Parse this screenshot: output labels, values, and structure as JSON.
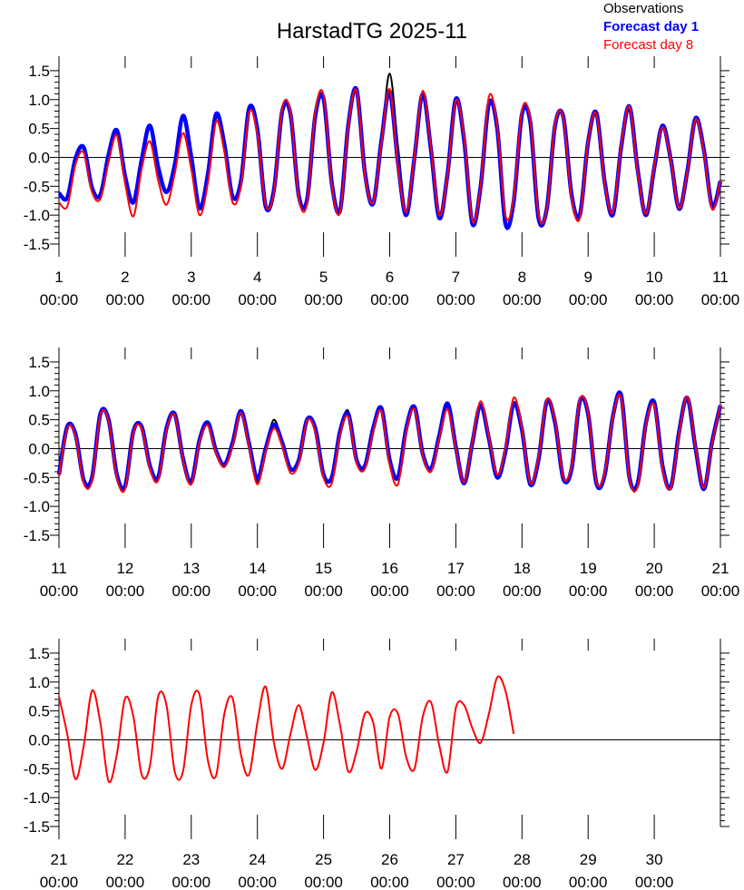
{
  "title": "HarstadTG 2025-11",
  "legend": "upper right",
  "chart_data": [
    {
      "type": "line",
      "x": [
        1,
        1.125,
        1.25,
        1.375,
        1.5,
        1.625,
        1.75,
        1.875,
        2,
        2.125,
        2.25,
        2.375,
        2.5,
        2.625,
        2.75,
        2.875,
        3,
        3.125,
        3.25,
        3.375,
        3.5,
        3.625,
        3.75,
        3.875,
        4,
        4.125,
        4.25,
        4.375,
        4.5,
        4.625,
        4.75,
        4.875,
        5,
        5.125,
        5.25,
        5.375,
        5.5,
        5.625,
        5.75,
        5.875,
        6,
        6.125,
        6.25,
        6.375,
        6.5,
        6.625,
        6.75,
        6.875,
        7,
        7.125,
        7.25,
        7.375,
        7.5,
        7.625,
        7.75,
        7.875,
        8,
        8.125,
        8.25,
        8.375,
        8.5,
        8.625,
        8.75,
        8.875,
        9,
        9.125,
        9.25,
        9.375,
        9.5,
        9.625,
        9.75,
        9.875,
        10,
        10.125,
        10.25,
        10.375,
        10.5,
        10.625,
        10.75,
        10.875,
        11
      ],
      "series": [
        {
          "name": "Observations",
          "color": "#000000",
          "width": 2,
          "values": [
            -0.62,
            -0.7,
            -0.02,
            0.17,
            -0.53,
            -0.65,
            0.05,
            0.47,
            -0.33,
            -0.78,
            -0.04,
            0.55,
            -0.17,
            -0.6,
            -0.13,
            0.72,
            0.01,
            -0.88,
            -0.3,
            0.75,
            0.23,
            -0.68,
            -0.42,
            0.85,
            0.48,
            -0.85,
            -0.56,
            0.8,
            0.75,
            -0.66,
            -0.74,
            0.72,
            1.02,
            -0.45,
            -0.92,
            0.57,
            1.17,
            -0.26,
            -0.8,
            0.29,
            1.45,
            0.2,
            -0.95,
            0,
            1.1,
            0.12,
            -1.05,
            -0.28,
            1.01,
            0.3,
            -1.15,
            -0.5,
            0.93,
            0.51,
            -1.15,
            -0.76,
            0.75,
            0.61,
            -1.05,
            -0.89,
            0.55,
            0.7,
            -0.65,
            -1.0,
            0.27,
            0.77,
            -0.42,
            -0.99,
            0.18,
            0.88,
            -0.22,
            -1.0,
            -0.18,
            0.55,
            -0.04,
            -0.89,
            -0.24,
            0.68,
            0.13,
            -0.85,
            -0.41
          ]
        },
        {
          "name": "Forecast day 1",
          "color": "#0000ff",
          "width": 4.5,
          "values": [
            -0.62,
            -0.7,
            -0.02,
            0.17,
            -0.53,
            -0.65,
            0.05,
            0.47,
            -0.33,
            -0.78,
            -0.04,
            0.55,
            -0.17,
            -0.6,
            -0.13,
            0.72,
            0.01,
            -0.88,
            -0.3,
            0.75,
            0.23,
            -0.68,
            -0.42,
            0.85,
            0.48,
            -0.85,
            -0.56,
            0.8,
            0.75,
            -0.66,
            -0.74,
            0.72,
            1.02,
            -0.45,
            -0.92,
            0.57,
            1.17,
            -0.26,
            -0.8,
            0.29,
            1.14,
            -0.09,
            -1.0,
            0,
            1.1,
            0.12,
            -1.05,
            -0.28,
            1.01,
            0.3,
            -1.15,
            -0.5,
            0.93,
            0.51,
            -1.15,
            -0.76,
            0.75,
            0.61,
            -1.05,
            -0.89,
            0.55,
            0.7,
            -0.65,
            -1.0,
            0.27,
            0.77,
            -0.42,
            -0.99,
            0.18,
            0.88,
            -0.22,
            -1.0,
            -0.18,
            0.55,
            -0.04,
            -0.89,
            -0.24,
            0.68,
            0.13,
            -0.85,
            -0.41
          ]
        },
        {
          "name": "Forecast day 8",
          "color": "#ff0000",
          "width": 2,
          "values": [
            -0.78,
            -0.85,
            -0.12,
            0.08,
            -0.6,
            -0.72,
            -0.08,
            0.38,
            -0.45,
            -1.02,
            -0.2,
            0.28,
            -0.4,
            -0.82,
            -0.28,
            0.42,
            -0.2,
            -1.0,
            -0.45,
            0.62,
            0.1,
            -0.78,
            -0.5,
            0.78,
            0.4,
            -0.82,
            -0.6,
            0.85,
            0.78,
            -0.7,
            -0.8,
            0.78,
            1.08,
            -0.48,
            -0.95,
            0.55,
            1.15,
            -0.3,
            -0.78,
            0.25,
            1.18,
            -0.15,
            -0.95,
            0.02,
            1.15,
            0.15,
            -1.0,
            -0.3,
            0.98,
            0.35,
            -1.1,
            -0.5,
            1.05,
            0.55,
            -1.0,
            -0.7,
            0.82,
            0.65,
            -1.0,
            -0.9,
            0.58,
            0.68,
            -0.7,
            -1.05,
            0.28,
            0.75,
            -0.45,
            -0.95,
            0.2,
            0.88,
            -0.25,
            -0.98,
            -0.15,
            0.52,
            -0.05,
            -0.88,
            -0.25,
            0.66,
            0.1,
            -0.9,
            -0.4
          ]
        }
      ],
      "xlim": [
        1,
        11
      ],
      "xticks": [
        {
          "value": 1,
          "label": "1\n00:00"
        },
        {
          "value": 2,
          "label": "2\n00:00"
        },
        {
          "value": 3,
          "label": "3\n00:00"
        },
        {
          "value": 4,
          "label": "4\n00:00"
        },
        {
          "value": 5,
          "label": "5\n00:00"
        },
        {
          "value": 6,
          "label": "6\n00:00"
        },
        {
          "value": 7,
          "label": "7\n00:00"
        },
        {
          "value": 8,
          "label": "8\n00:00"
        },
        {
          "value": 9,
          "label": "9\n00:00"
        },
        {
          "value": 10,
          "label": "10\n00:00"
        },
        {
          "value": 11,
          "label": "11\n00:00"
        }
      ],
      "ylim": [
        -1.5,
        1.75
      ],
      "yticks": [
        -1.5,
        {
          "value": -1,
          "label": "-1.0"
        },
        -0.5,
        {
          "value": 0,
          "label": "0.0"
        },
        0.5,
        {
          "value": 1,
          "label": "1.0"
        },
        1.5
      ]
    },
    {
      "type": "line",
      "x": [
        11,
        11.125,
        11.25,
        11.375,
        11.5,
        11.625,
        11.75,
        11.875,
        12,
        12.125,
        12.25,
        12.375,
        12.5,
        12.625,
        12.75,
        12.875,
        13,
        13.125,
        13.25,
        13.375,
        13.5,
        13.625,
        13.75,
        13.875,
        14,
        14.125,
        14.25,
        14.375,
        14.5,
        14.625,
        14.75,
        14.875,
        15,
        15.125,
        15.25,
        15.375,
        15.5,
        15.625,
        15.75,
        15.875,
        16,
        16.125,
        16.25,
        16.375,
        16.5,
        16.625,
        16.75,
        16.875,
        17,
        17.125,
        17.25,
        17.375,
        17.5,
        17.625,
        17.75,
        17.875,
        18,
        18.125,
        18.25,
        18.375,
        18.5,
        18.625,
        18.75,
        18.875,
        19,
        19.125,
        19.25,
        19.375,
        19.5,
        19.625,
        19.75,
        19.875,
        20,
        20.125,
        20.25,
        20.375,
        20.5,
        20.625,
        20.75,
        20.875,
        21
      ],
      "series": [
        {
          "name": "Observations",
          "color": "#000000",
          "width": 2,
          "values": [
            -0.45,
            0.38,
            0.25,
            -0.55,
            -0.5,
            0.6,
            0.5,
            -0.45,
            -0.65,
            0.3,
            0.38,
            -0.3,
            -0.5,
            0.35,
            0.6,
            -0.17,
            -0.58,
            0.15,
            0.45,
            -0.04,
            -0.28,
            0.1,
            0.65,
            0.08,
            -0.58,
            0,
            0.5,
            0.1,
            -0.35,
            -0.2,
            0.5,
            0.35,
            -0.45,
            -0.5,
            0.3,
            0.65,
            -0.2,
            -0.3,
            0.35,
            0.7,
            -0.2,
            -0.5,
            0.35,
            0.72,
            -0.09,
            -0.35,
            0.23,
            0.78,
            0.03,
            -0.6,
            0.1,
            0.75,
            0.17,
            -0.5,
            -0.05,
            0.78,
            0.32,
            -0.62,
            -0.19,
            0.82,
            0.45,
            -0.52,
            -0.35,
            0.82,
            0.6,
            -0.6,
            -0.46,
            0.56,
            0.92,
            -0.5,
            -0.6,
            0.45,
            0.8,
            -0.3,
            -0.67,
            0.29,
            0.88,
            0,
            -0.7,
            0.12,
            0.75
          ]
        },
        {
          "name": "Forecast day 1",
          "color": "#0000ff",
          "width": 4.5,
          "values": [
            -0.45,
            0.38,
            0.25,
            -0.55,
            -0.5,
            0.6,
            0.5,
            -0.45,
            -0.65,
            0.3,
            0.38,
            -0.3,
            -0.5,
            0.35,
            0.6,
            -0.17,
            -0.58,
            0.15,
            0.45,
            -0.04,
            -0.28,
            0.1,
            0.65,
            0.08,
            -0.52,
            0,
            0.42,
            0.1,
            -0.35,
            -0.2,
            0.5,
            0.35,
            -0.45,
            -0.5,
            0.3,
            0.6,
            -0.2,
            -0.3,
            0.35,
            0.7,
            -0.2,
            -0.5,
            0.35,
            0.72,
            -0.09,
            -0.35,
            0.23,
            0.78,
            0.03,
            -0.6,
            0.1,
            0.75,
            0.17,
            -0.5,
            -0.05,
            0.78,
            0.32,
            -0.62,
            -0.19,
            0.82,
            0.45,
            -0.52,
            -0.35,
            0.82,
            0.6,
            -0.6,
            -0.46,
            0.56,
            0.92,
            -0.5,
            -0.6,
            0.45,
            0.8,
            -0.3,
            -0.67,
            0.29,
            0.88,
            0,
            -0.7,
            0.12,
            0.75
          ]
        },
        {
          "name": "Forecast day 8",
          "color": "#ff0000",
          "width": 2,
          "values": [
            -0.48,
            0.35,
            0.22,
            -0.6,
            -0.55,
            0.58,
            0.48,
            -0.5,
            -0.7,
            0.28,
            0.35,
            -0.35,
            -0.55,
            0.32,
            0.58,
            -0.2,
            -0.62,
            0.12,
            0.4,
            -0.08,
            -0.32,
            0.05,
            0.62,
            0.02,
            -0.62,
            -0.05,
            0.35,
            0.05,
            -0.42,
            -0.25,
            0.48,
            0.3,
            -0.5,
            -0.6,
            0.25,
            0.55,
            -0.25,
            -0.35,
            0.3,
            0.65,
            -0.28,
            -0.62,
            0.3,
            0.68,
            -0.12,
            -0.4,
            0.18,
            0.68,
            0,
            -0.58,
            0.12,
            0.82,
            0.2,
            -0.45,
            0,
            0.88,
            0.35,
            -0.6,
            -0.15,
            0.85,
            0.48,
            -0.5,
            -0.3,
            0.85,
            0.62,
            -0.58,
            -0.42,
            0.55,
            0.88,
            -0.52,
            -0.65,
            0.42,
            0.75,
            -0.35,
            -0.68,
            0.25,
            0.9,
            0.02,
            -0.68,
            0.1,
            0.75
          ]
        }
      ],
      "xlim": [
        11,
        21
      ],
      "xticks": [
        {
          "value": 11,
          "label": "11\n00:00"
        },
        {
          "value": 12,
          "label": "12\n00:00"
        },
        {
          "value": 13,
          "label": "13\n00:00"
        },
        {
          "value": 14,
          "label": "14\n00:00"
        },
        {
          "value": 15,
          "label": "15\n00:00"
        },
        {
          "value": 16,
          "label": "16\n00:00"
        },
        {
          "value": 17,
          "label": "17\n00:00"
        },
        {
          "value": 18,
          "label": "18\n00:00"
        },
        {
          "value": 19,
          "label": "19\n00:00"
        },
        {
          "value": 20,
          "label": "20\n00:00"
        },
        {
          "value": 21,
          "label": "21\n00:00"
        }
      ],
      "ylim": [
        -1.5,
        1.75
      ],
      "yticks": [
        -1.5,
        {
          "value": -1,
          "label": "-1.0"
        },
        -0.5,
        {
          "value": 0,
          "label": "0.0"
        },
        0.5,
        {
          "value": 1,
          "label": "1.0"
        },
        1.5
      ]
    },
    {
      "type": "line",
      "x": [
        21,
        21.125,
        21.25,
        21.375,
        21.5,
        21.625,
        21.75,
        21.875,
        22,
        22.125,
        22.25,
        22.375,
        22.5,
        22.625,
        22.75,
        22.875,
        23,
        23.125,
        23.25,
        23.375,
        23.5,
        23.625,
        23.75,
        23.875,
        24,
        24.125,
        24.25,
        24.375,
        24.5,
        24.625,
        24.75,
        24.875,
        25,
        25.125,
        25.25,
        25.375,
        25.5,
        25.625,
        25.75,
        25.875,
        26,
        26.125,
        26.25,
        26.375,
        26.5,
        26.625,
        26.75,
        26.875,
        27,
        27.125,
        27.25,
        27.375,
        27.5,
        27.625,
        27.75,
        27.875
      ],
      "series": [
        {
          "name": "Forecast day 8",
          "color": "#ff0000",
          "width": 2,
          "values": [
            0.75,
            0.1,
            -0.68,
            -0.1,
            0.85,
            0.3,
            -0.72,
            -0.25,
            0.72,
            0.4,
            -0.6,
            -0.45,
            0.75,
            0.6,
            -0.55,
            -0.55,
            0.6,
            0.78,
            -0.35,
            -0.62,
            0.45,
            0.72,
            -0.25,
            -0.6,
            0.3,
            0.92,
            -0.05,
            -0.5,
            0.1,
            0.6,
            0.05,
            -0.52,
            -0.05,
            0.82,
            0.25,
            -0.55,
            -0.2,
            0.45,
            0.3,
            -0.5,
            0.4,
            0.45,
            -0.3,
            -0.5,
            0.4,
            0.65,
            -0.1,
            -0.55,
            0.55,
            0.6,
            0.2,
            -0.05,
            0.45,
            1.08,
            0.85,
            0.1
          ]
        }
      ],
      "xlim": [
        21,
        31
      ],
      "xticks": [
        {
          "value": 21,
          "label": "21\n00:00"
        },
        {
          "value": 22,
          "label": "22\n00:00"
        },
        {
          "value": 23,
          "label": "23\n00:00"
        },
        {
          "value": 24,
          "label": "24\n00:00"
        },
        {
          "value": 25,
          "label": "25\n00:00"
        },
        {
          "value": 26,
          "label": "26\n00:00"
        },
        {
          "value": 27,
          "label": "27\n00:00"
        },
        {
          "value": 28,
          "label": "28\n00:00"
        },
        {
          "value": 29,
          "label": "29\n00:00"
        },
        {
          "value": 30,
          "label": "30\n00:00"
        }
      ],
      "ylim": [
        -1.5,
        1.75
      ],
      "yticks": [
        -1.5,
        {
          "value": -1,
          "label": "-1.0"
        },
        -0.5,
        {
          "value": 0,
          "label": "0.0"
        },
        0.5,
        {
          "value": 1,
          "label": "1.0"
        },
        1.5
      ]
    }
  ]
}
